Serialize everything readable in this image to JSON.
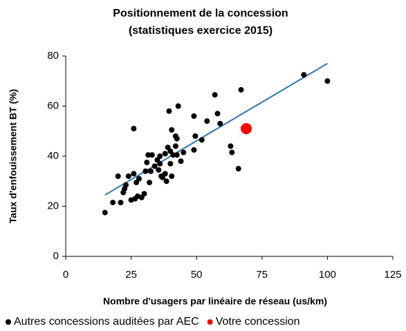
{
  "chart_data": {
    "type": "scatter",
    "title": [
      "Positionnement de la concession",
      "(statistiques exercice 2015)"
    ],
    "xlabel": "Nombre d'usagers par linéaire de réseau (us/km)",
    "ylabel": "Taux d'enfouissement BT (%)",
    "xlim": [
      0,
      125
    ],
    "xticks": [
      0,
      25,
      50,
      75,
      100,
      125
    ],
    "ylim": [
      0,
      80
    ],
    "yticks": [
      0,
      20,
      40,
      60,
      80
    ],
    "legend": "bottom",
    "series": [
      {
        "name": "Autres concessions auditées par AEC",
        "color": "#000000",
        "size": 4,
        "x": [
          15,
          18,
          20,
          21,
          22,
          22.5,
          23,
          24,
          25,
          26,
          26,
          26.5,
          27,
          27.5,
          28,
          29,
          30,
          30.5,
          31,
          31.5,
          32,
          32.5,
          33,
          34,
          35,
          35.5,
          36,
          36,
          36.5,
          37,
          38,
          38,
          38.5,
          39,
          39.5,
          40,
          40,
          40.5,
          40.5,
          41,
          42,
          42,
          42.5,
          42.5,
          43,
          44,
          45,
          49,
          49.5,
          49,
          52,
          54,
          57,
          58,
          59,
          63,
          63.5,
          66,
          67,
          91,
          100
        ],
        "values": [
          17.5,
          21.5,
          32,
          21.5,
          25.5,
          27,
          28.5,
          32,
          22.5,
          33,
          51,
          23,
          29.5,
          24,
          31,
          23.5,
          25,
          34,
          37.5,
          40.5,
          29.5,
          34,
          40.5,
          36,
          38.5,
          34.5,
          40,
          37,
          32,
          31.5,
          33,
          41,
          30,
          43.5,
          58,
          37,
          42,
          50.5,
          32,
          40.5,
          48,
          44,
          47,
          40.5,
          60,
          38,
          41.5,
          56,
          48,
          42.5,
          46.5,
          54,
          64.5,
          57,
          53,
          44,
          41.5,
          35,
          66.5,
          72.5,
          70
        ]
      },
      {
        "name": "Votre concession",
        "color": "#ff0000",
        "size": 8,
        "x": [
          69
        ],
        "values": [
          51
        ]
      }
    ],
    "trendline": {
      "x": [
        15,
        100
      ],
      "values": [
        24.5,
        77
      ],
      "color": "#2e75b6"
    }
  }
}
